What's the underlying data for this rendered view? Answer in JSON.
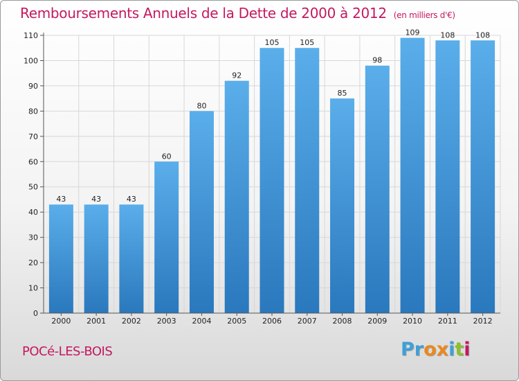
{
  "header": {
    "title": "Remboursements Annuels de la Dette de 2000 à 2012",
    "subtitle": "(en milliers d'€)"
  },
  "footer": {
    "commune": "POCé-LES-BOIS",
    "logo": {
      "text": "Proxiti",
      "letters": [
        "P",
        "r",
        "o",
        "x",
        "i",
        "t",
        "i"
      ],
      "colors": [
        "#3f9fd8",
        "#3f9fd8",
        "#e8891f",
        "#e8891f",
        "#3f9fd8",
        "#8dbf2e",
        "#c4185f"
      ]
    }
  },
  "colors": {
    "title": "#c4185f",
    "bar_light": "#5aaeea",
    "bar_dark": "#2a78bd",
    "grid": "#d7d7d7",
    "axis": "#555555"
  },
  "chart_data": {
    "type": "bar",
    "categories": [
      "2000",
      "2001",
      "2002",
      "2003",
      "2004",
      "2005",
      "2006",
      "2007",
      "2008",
      "2009",
      "2010",
      "2011",
      "2012"
    ],
    "values": [
      43,
      43,
      43,
      60,
      80,
      92,
      105,
      105,
      85,
      98,
      109,
      108,
      108
    ],
    "ylim": [
      0,
      110
    ],
    "yticks": [
      0,
      10,
      20,
      30,
      40,
      50,
      60,
      70,
      80,
      90,
      100,
      110
    ],
    "grid": true,
    "legend": "none"
  }
}
